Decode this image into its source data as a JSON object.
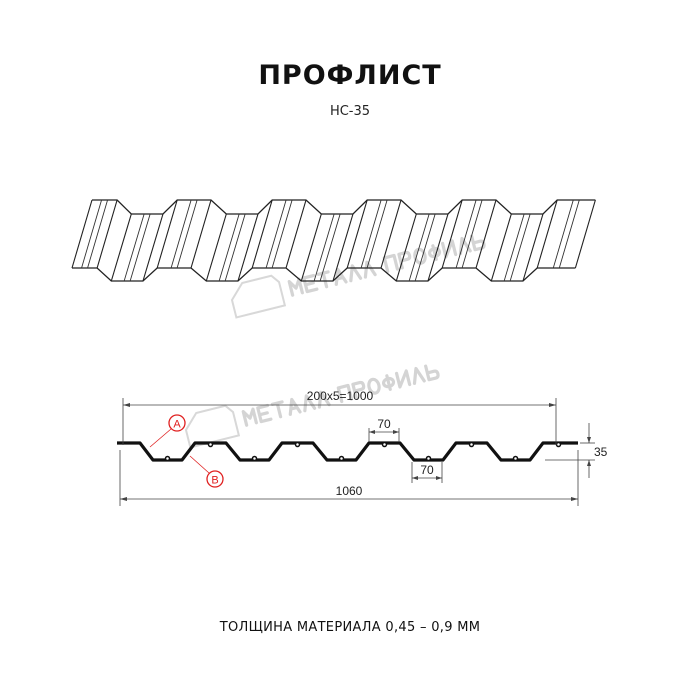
{
  "header": {
    "title": "ПРОФЛИСТ",
    "model": "НС-35"
  },
  "watermark": {
    "logo_text": "МЕТАЛЛ ПРОФИЛЬ",
    "color": "#d4d4d4"
  },
  "drawing": {
    "dimensions": {
      "pitch_total": "200x5=1000",
      "top_shelf": "70",
      "bottom_shelf": "70",
      "height": "35",
      "full_width": "1060"
    },
    "callouts": [
      {
        "label": "A"
      },
      {
        "label": "B"
      }
    ],
    "callout_color": "#e02020",
    "profile_color": "#111111"
  },
  "footer": {
    "thickness": "ТОЛЩИНА МАТЕРИАЛА 0,45 – 0,9 ММ"
  }
}
